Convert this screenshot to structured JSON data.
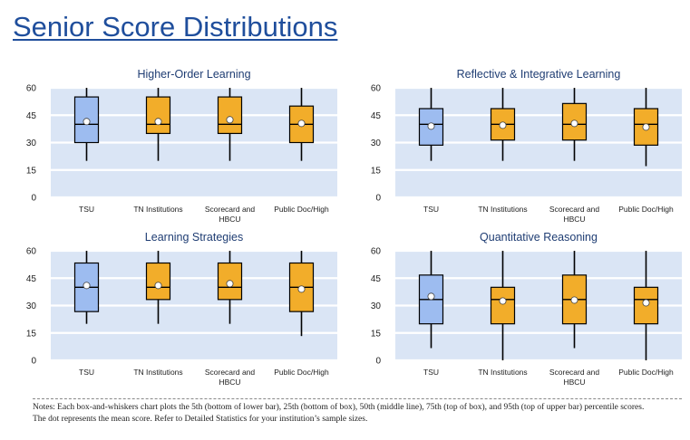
{
  "page": {
    "title": "Senior Score Distributions",
    "notes_line1": "Notes: Each box-and-whiskers chart plots the 5th (bottom of lower bar), 25th (bottom of box), 50th (middle line), 75th (top of box), and 95th (top of upper bar) percentile scores.",
    "notes_line2": "The dot represents the mean score. Refer to Detailed Statistics for your institution’s sample sizes."
  },
  "colors": {
    "plot_bg": "#dae5f5",
    "tsu_box": "#9dbcf0",
    "comparison_box": "#f2ad2a",
    "title": "#1f4e9c",
    "chart_title": "#1f3d73"
  },
  "chart_data": [
    {
      "type": "boxplot",
      "title": "Higher-Order Learning",
      "ylim": [
        0,
        60
      ],
      "yticks": [
        "0",
        "15",
        "30",
        "45",
        "60"
      ],
      "categories": [
        [
          "TSU"
        ],
        [
          "TN Institutions"
        ],
        [
          "Scorecard and",
          "HBCU"
        ],
        [
          "Public Doc/High"
        ]
      ],
      "series": [
        {
          "p5": 20,
          "p25": 30,
          "p50": 40,
          "p75": 55,
          "p95": 60,
          "mean": 41.5
        },
        {
          "p5": 20,
          "p25": 35,
          "p50": 40,
          "p75": 55,
          "p95": 60,
          "mean": 41.5
        },
        {
          "p5": 20,
          "p25": 35,
          "p50": 40,
          "p75": 55,
          "p95": 60,
          "mean": 42.5
        },
        {
          "p5": 20,
          "p25": 30,
          "p50": 40,
          "p75": 50,
          "p95": 60,
          "mean": 40.5
        }
      ]
    },
    {
      "type": "boxplot",
      "title": "Reflective & Integrative Learning",
      "ylim": [
        0,
        60
      ],
      "yticks": [
        "0",
        "15",
        "30",
        "45",
        "60"
      ],
      "categories": [
        [
          "TSU"
        ],
        [
          "TN Institutions"
        ],
        [
          "Scorecard and",
          "HBCU"
        ],
        [
          "Public Doc/High"
        ]
      ],
      "series": [
        {
          "p5": 20,
          "p25": 28.6,
          "p50": 40,
          "p75": 48.6,
          "p95": 60,
          "mean": 39
        },
        {
          "p5": 20,
          "p25": 31.4,
          "p50": 40,
          "p75": 48.6,
          "p95": 60,
          "mean": 39.5
        },
        {
          "p5": 20,
          "p25": 31.4,
          "p50": 40,
          "p75": 51.4,
          "p95": 60,
          "mean": 40.5
        },
        {
          "p5": 17.1,
          "p25": 28.6,
          "p50": 40,
          "p75": 48.6,
          "p95": 60,
          "mean": 38.5
        }
      ]
    },
    {
      "type": "boxplot",
      "title": "Learning Strategies",
      "ylim": [
        0,
        60
      ],
      "yticks": [
        "0",
        "15",
        "30",
        "45",
        "60"
      ],
      "categories": [
        [
          "TSU"
        ],
        [
          "TN Institutions"
        ],
        [
          "Scorecard and",
          "HBCU"
        ],
        [
          "Public Doc/High"
        ]
      ],
      "series": [
        {
          "p5": 20,
          "p25": 26.7,
          "p50": 40,
          "p75": 53.3,
          "p95": 60,
          "mean": 41
        },
        {
          "p5": 20,
          "p25": 33.3,
          "p50": 40,
          "p75": 53.3,
          "p95": 60,
          "mean": 41
        },
        {
          "p5": 20,
          "p25": 33.3,
          "p50": 40,
          "p75": 53.3,
          "p95": 60,
          "mean": 42
        },
        {
          "p5": 13.3,
          "p25": 26.7,
          "p50": 40,
          "p75": 53.3,
          "p95": 60,
          "mean": 39
        }
      ]
    },
    {
      "type": "boxplot",
      "title": "Quantitative Reasoning",
      "ylim": [
        0,
        60
      ],
      "yticks": [
        "0",
        "15",
        "30",
        "45",
        "60"
      ],
      "categories": [
        [
          "TSU"
        ],
        [
          "TN Institutions"
        ],
        [
          "Scorecard and",
          "HBCU"
        ],
        [
          "Public Doc/High"
        ]
      ],
      "series": [
        {
          "p5": 6.7,
          "p25": 20,
          "p50": 33.3,
          "p75": 46.7,
          "p95": 60,
          "mean": 35
        },
        {
          "p5": 0,
          "p25": 20,
          "p50": 33.3,
          "p75": 40,
          "p95": 60,
          "mean": 32.5
        },
        {
          "p5": 6.7,
          "p25": 20,
          "p50": 33.3,
          "p75": 46.7,
          "p95": 60,
          "mean": 33
        },
        {
          "p5": 0,
          "p25": 20,
          "p50": 33.3,
          "p75": 40,
          "p95": 60,
          "mean": 31.5
        }
      ]
    }
  ]
}
